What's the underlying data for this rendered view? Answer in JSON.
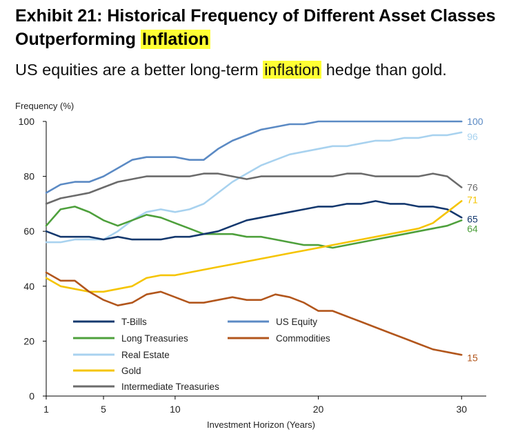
{
  "header": {
    "title_part1": "Exhibit 21: Historical Frequency of Different Asset Classes Outperforming ",
    "title_highlight": "Inflation",
    "subtitle_part1": "US equities are a better long-term ",
    "subtitle_highlight": "inflation",
    "subtitle_part2": " hedge than gold."
  },
  "chart_data": {
    "type": "line",
    "title": "",
    "xlabel": "Investment Horizon (Years)",
    "ylabel": "Frequency (%)",
    "xlim": [
      1,
      31
    ],
    "ylim": [
      0,
      100
    ],
    "xticks": [
      1,
      5,
      10,
      20,
      30
    ],
    "yticks": [
      0,
      20,
      40,
      60,
      80,
      100
    ],
    "grid": false,
    "legend_position": "bottom-left",
    "series": [
      {
        "name": "T-Bills",
        "color": "#14386e",
        "x": [
          1,
          2,
          3,
          4,
          5,
          6,
          7,
          8,
          9,
          10,
          11,
          12,
          13,
          14,
          15,
          16,
          17,
          18,
          19,
          20,
          21,
          22,
          23,
          24,
          25,
          26,
          27,
          28,
          29,
          30
        ],
        "y": [
          60,
          58,
          58,
          58,
          57,
          58,
          57,
          57,
          57,
          58,
          58,
          59,
          60,
          62,
          64,
          65,
          66,
          67,
          68,
          69,
          69,
          70,
          70,
          71,
          70,
          70,
          69,
          69,
          68,
          65
        ],
        "end_label": "65"
      },
      {
        "name": "US Equity",
        "color": "#5b8ac4",
        "x": [
          1,
          2,
          3,
          4,
          5,
          6,
          7,
          8,
          9,
          10,
          11,
          12,
          13,
          14,
          15,
          16,
          17,
          18,
          19,
          20,
          21,
          22,
          23,
          24,
          25,
          26,
          27,
          28,
          29,
          30
        ],
        "y": [
          74,
          77,
          78,
          78,
          80,
          83,
          86,
          87,
          87,
          87,
          86,
          86,
          90,
          93,
          95,
          97,
          98,
          99,
          99,
          100,
          100,
          100,
          100,
          100,
          100,
          100,
          100,
          100,
          100,
          100
        ],
        "end_label": "100"
      },
      {
        "name": "Long Treasuries",
        "color": "#4ea03c",
        "x": [
          1,
          2,
          3,
          4,
          5,
          6,
          7,
          8,
          9,
          10,
          11,
          12,
          13,
          14,
          15,
          16,
          17,
          18,
          19,
          20,
          21,
          22,
          23,
          24,
          25,
          26,
          27,
          28,
          29,
          30
        ],
        "y": [
          62,
          68,
          69,
          67,
          64,
          62,
          64,
          66,
          65,
          63,
          61,
          59,
          59,
          59,
          58,
          58,
          57,
          56,
          55,
          55,
          54,
          55,
          56,
          57,
          58,
          59,
          60,
          61,
          62,
          64
        ],
        "end_label": "64"
      },
      {
        "name": "Commodities",
        "color": "#b2561c",
        "x": [
          1,
          2,
          3,
          4,
          5,
          6,
          7,
          8,
          9,
          10,
          11,
          12,
          13,
          14,
          15,
          16,
          17,
          18,
          19,
          20,
          21,
          22,
          23,
          24,
          25,
          26,
          27,
          28,
          29,
          30
        ],
        "y": [
          45,
          42,
          42,
          38,
          35,
          33,
          34,
          37,
          38,
          36,
          34,
          34,
          35,
          36,
          35,
          35,
          37,
          36,
          34,
          31,
          31,
          29,
          27,
          25,
          23,
          21,
          19,
          17,
          16,
          15
        ],
        "end_label": "15"
      },
      {
        "name": "Real Estate",
        "color": "#a8d2ef",
        "x": [
          1,
          2,
          3,
          4,
          5,
          6,
          7,
          8,
          9,
          10,
          11,
          12,
          13,
          14,
          15,
          16,
          17,
          18,
          19,
          20,
          21,
          22,
          23,
          24,
          25,
          26,
          27,
          28,
          29,
          30
        ],
        "y": [
          56,
          56,
          57,
          57,
          57,
          60,
          64,
          67,
          68,
          67,
          68,
          70,
          74,
          78,
          81,
          84,
          86,
          88,
          89,
          90,
          91,
          91,
          92,
          93,
          93,
          94,
          94,
          95,
          95,
          96
        ],
        "end_label": "96"
      },
      {
        "name": "Gold",
        "color": "#f5c400",
        "x": [
          1,
          2,
          3,
          4,
          5,
          6,
          7,
          8,
          9,
          10,
          11,
          12,
          13,
          14,
          15,
          16,
          17,
          18,
          19,
          20,
          21,
          22,
          23,
          24,
          25,
          26,
          27,
          28,
          29,
          30
        ],
        "y": [
          43,
          40,
          39,
          38,
          38,
          39,
          40,
          43,
          44,
          44,
          45,
          46,
          47,
          48,
          49,
          50,
          51,
          52,
          53,
          54,
          55,
          56,
          57,
          58,
          59,
          60,
          61,
          63,
          67,
          71
        ],
        "end_label": "71"
      },
      {
        "name": "Intermediate Treasuries",
        "color": "#6b6b6b",
        "x": [
          1,
          2,
          3,
          4,
          5,
          6,
          7,
          8,
          9,
          10,
          11,
          12,
          13,
          14,
          15,
          16,
          17,
          18,
          19,
          20,
          21,
          22,
          23,
          24,
          25,
          26,
          27,
          28,
          29,
          30
        ],
        "y": [
          70,
          72,
          73,
          74,
          76,
          78,
          79,
          80,
          80,
          80,
          80,
          81,
          81,
          80,
          79,
          80,
          80,
          80,
          80,
          80,
          80,
          81,
          81,
          80,
          80,
          80,
          80,
          81,
          80,
          76
        ],
        "end_label": "76"
      }
    ]
  }
}
